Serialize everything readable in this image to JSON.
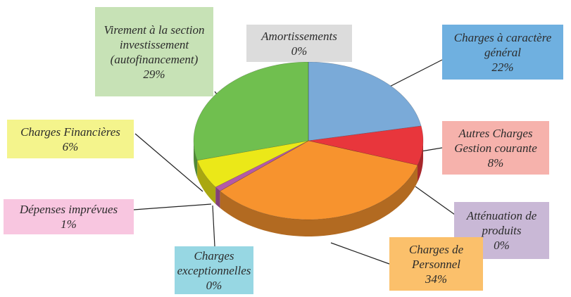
{
  "chart_data": {
    "type": "pie",
    "categories": [
      "Charges à caractère général",
      "Autres Charges Gestion courante",
      "Atténuation de produits",
      "Charges de Personnel",
      "Charges exceptionnelles",
      "Dépenses imprévues",
      "Charges Financières",
      "Virement à la section investissement (autofinancement)",
      "Amortissements"
    ],
    "values": [
      22,
      8,
      0,
      34,
      0,
      1,
      6,
      29,
      0
    ],
    "value_labels": [
      "22%",
      "8%",
      "0%",
      "34%",
      "0%",
      "1%",
      "6%",
      "29%",
      "0%"
    ],
    "colors": [
      "#7aaad8",
      "#e8363c",
      "#9b7cb6",
      "#f7932e",
      "#4bb8cc",
      "#b45aa8",
      "#ebe818",
      "#70bf4f",
      "#a6a6a6"
    ],
    "label_colors": [
      "#6fb0e0",
      "#f6b2ac",
      "#c9b8d6",
      "#fbc06b",
      "#97d7e3",
      "#f8c6e0",
      "#f4f48c",
      "#c7e2b6",
      "#dcdcdc"
    ]
  }
}
